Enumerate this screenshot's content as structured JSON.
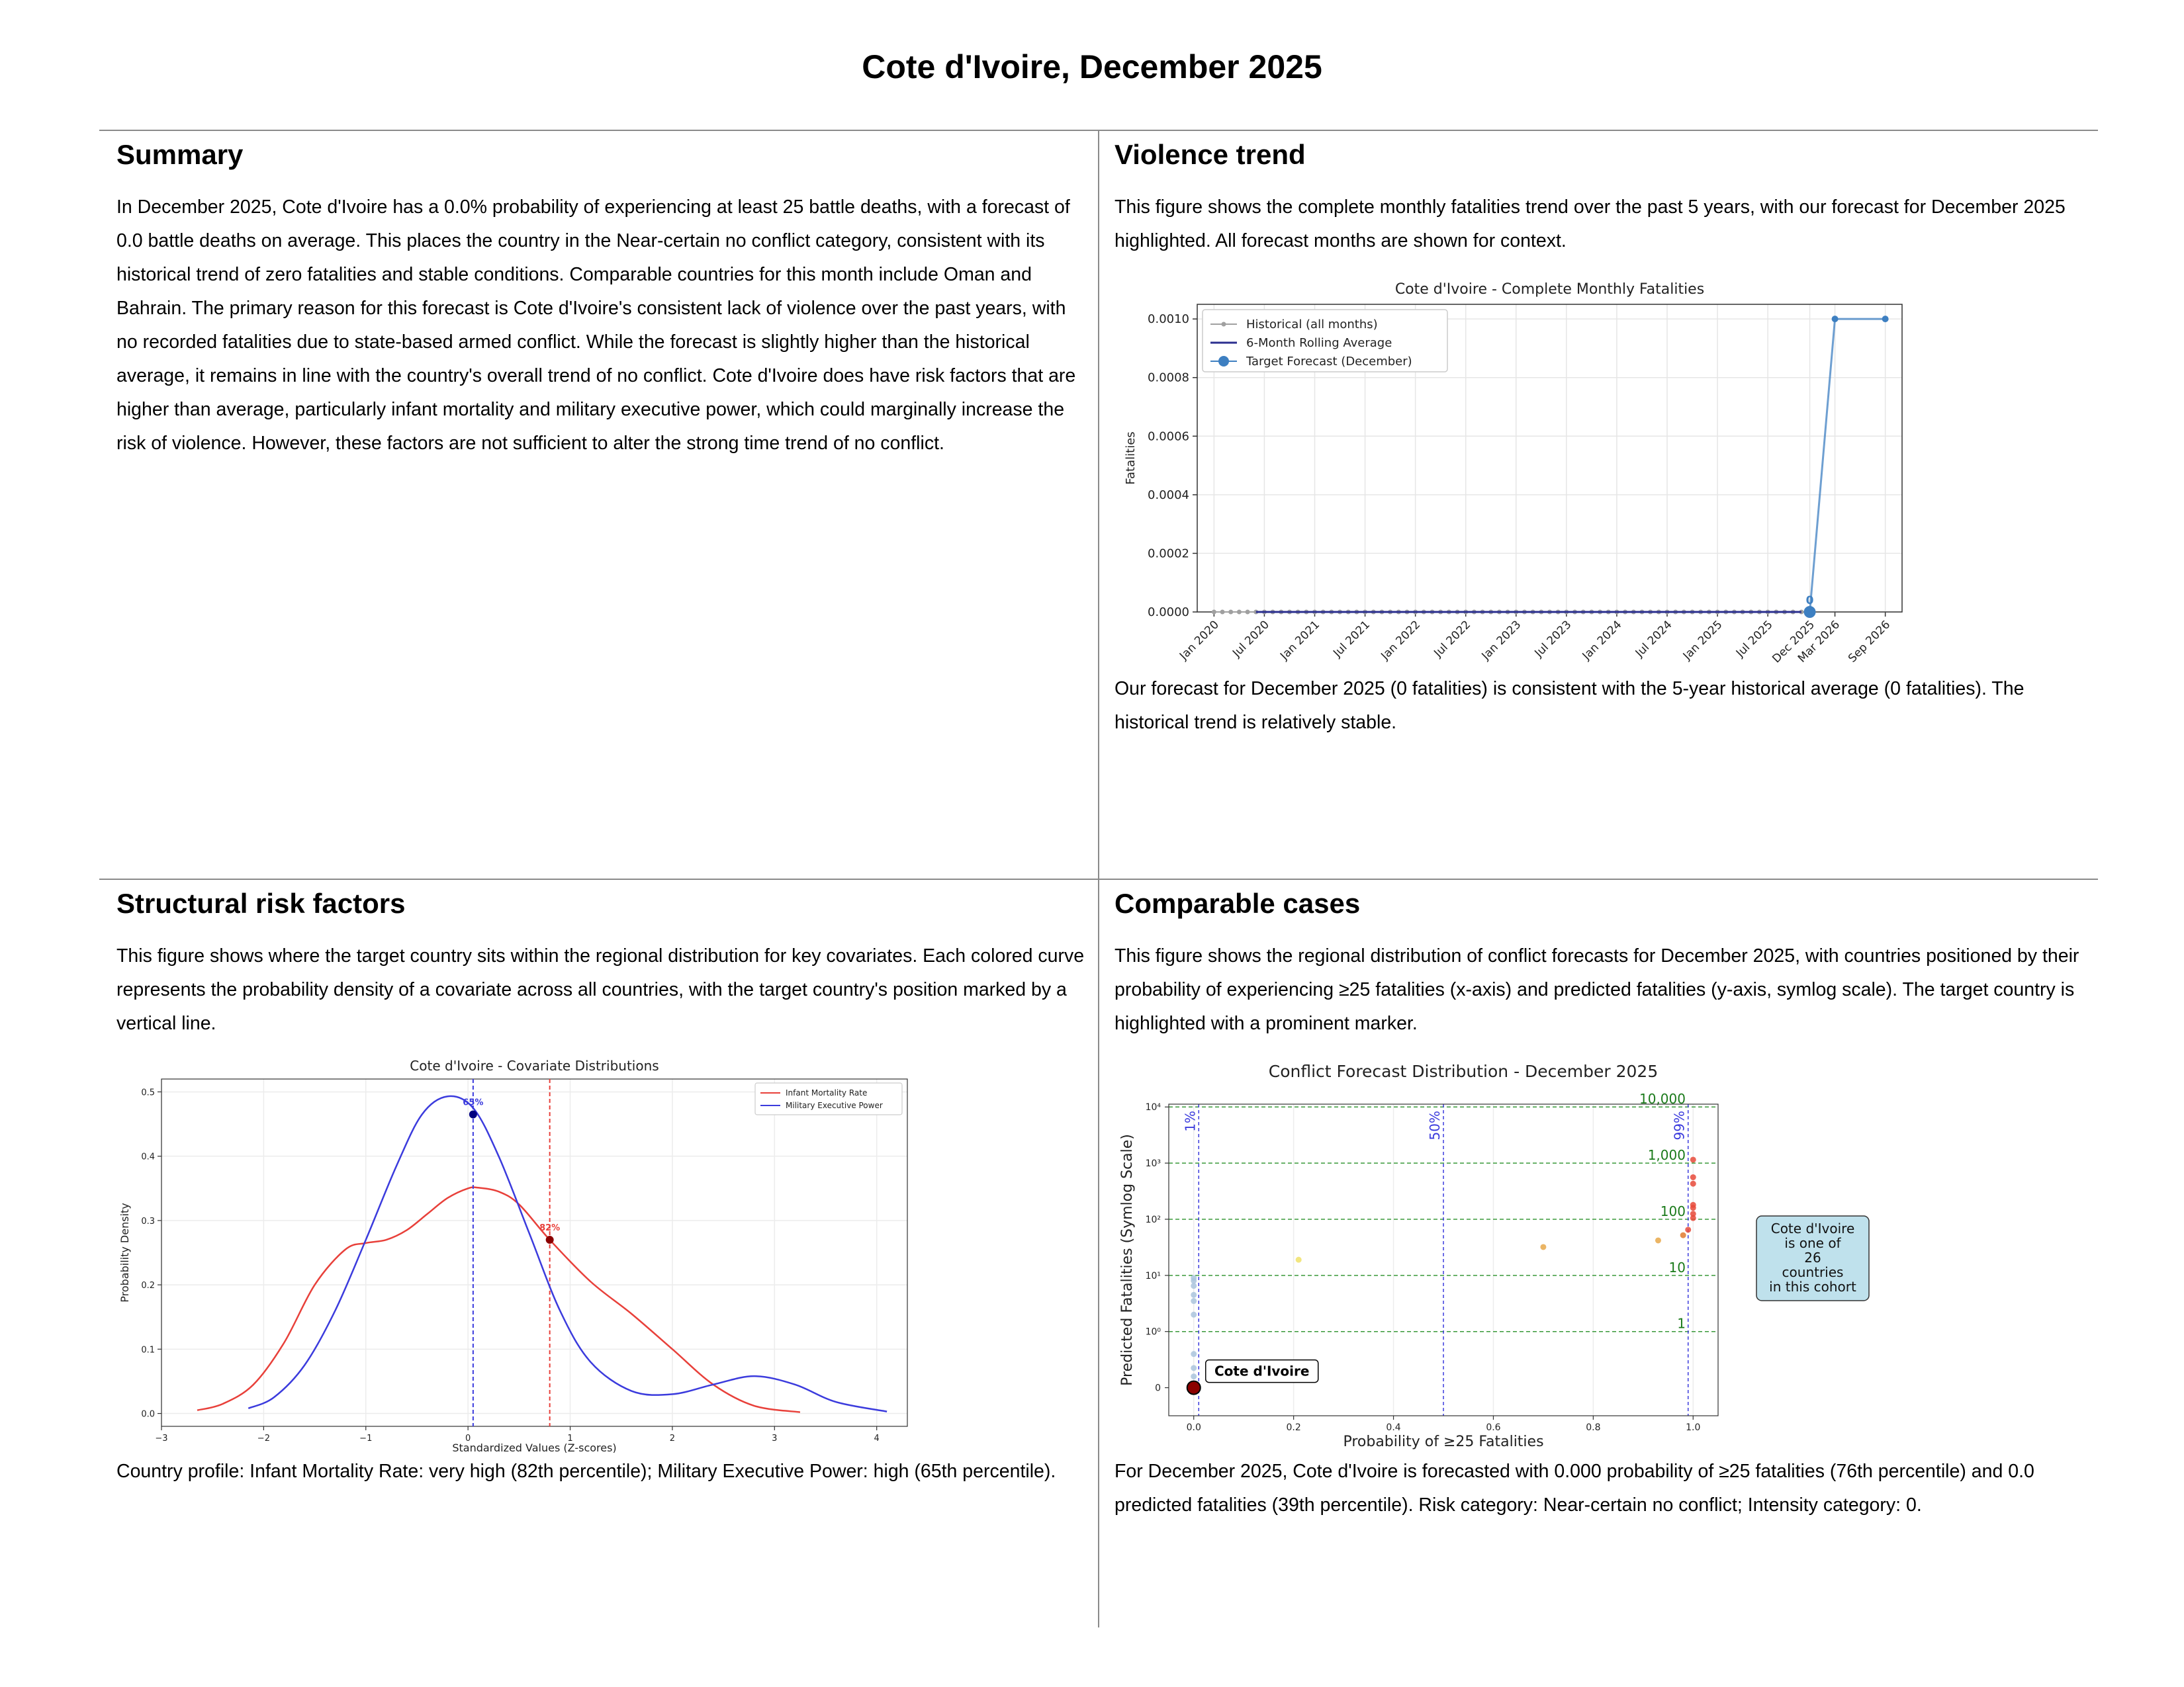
{
  "page": {
    "title": "Cote d'Ivoire, December 2025"
  },
  "summary": {
    "heading": "Summary",
    "body": "In December 2025, Cote d'Ivoire has a 0.0% probability of experiencing at least 25 battle deaths, with a forecast of 0.0 battle deaths on average. This places the country in the Near-certain no conflict category, consistent with its historical trend of zero fatalities and stable conditions. Comparable countries for this month include Oman and Bahrain. The primary reason for this forecast is Cote d'Ivoire's consistent lack of violence over the past years, with no recorded fatalities due to state-based armed conflict. While the forecast is slightly higher than the historical average, it remains in line with the country's overall trend of no conflict. Cote d'Ivoire does have risk factors that are higher than average, particularly infant mortality and military executive power, which could marginally increase the risk of violence. However, these factors are not sufficient to alter the strong time trend of no conflict."
  },
  "violence": {
    "heading": "Violence trend",
    "intro": "This figure shows the complete monthly fatalities trend over the past 5 years, with our forecast for December 2025 highlighted. All forecast months are shown for context.",
    "caption": "Our forecast for December 2025 (0 fatalities) is consistent with the 5-year historical average (0 fatalities). The historical trend is relatively stable."
  },
  "structural": {
    "heading": "Structural risk factors",
    "intro": "This figure shows where the target country sits within the regional distribution for key covariates. Each colored curve represents the probability density of a covariate across all countries, with the target country's position marked by a vertical line.",
    "caption": "Country profile: Infant Mortality Rate: very high (82th percentile); Military Executive Power: high (65th percentile)."
  },
  "comparable": {
    "heading": "Comparable cases",
    "intro": "This figure shows the regional distribution of conflict forecasts for December 2025, with countries positioned by their probability of experiencing ≥25 fatalities (x-axis) and predicted fatalities (y-axis, symlog scale). The target country is highlighted with a prominent marker.",
    "caption": "For December 2025, Cote d'Ivoire is forecasted with 0.000 probability of ≥25 fatalities (76th percentile) and 0.0 predicted fatalities (39th percentile). Risk category: Near-certain no conflict; Intensity category: 0."
  },
  "chart_data": [
    {
      "type": "line",
      "title": "Cote d'Ivoire - Complete Monthly Fatalities",
      "ylabel": "Fatalities",
      "xlabel": "",
      "ylim": [
        0,
        0.00105
      ],
      "y_ticks": [
        "0.0000",
        "0.0002",
        "0.0004",
        "0.0006",
        "0.0008",
        "0.0010"
      ],
      "x_ticks": [
        "Jan 2020",
        "Jul 2020",
        "Jan 2021",
        "Jul 2021",
        "Jan 2022",
        "Jul 2022",
        "Jan 2023",
        "Jul 2023",
        "Jan 2024",
        "Jul 2024",
        "Jan 2025",
        "Jul 2025",
        "Dec 2025",
        "Mar 2026",
        "Sep 2026"
      ],
      "legend": [
        "Historical (all months)",
        "6-Month Rolling Average",
        "Target Forecast (December)"
      ],
      "legend_position": "top-left",
      "grid": true,
      "colors": {
        "historical": "#a0a0a0",
        "rolling": "#2b2f8f",
        "forecast": "#3d7fc1"
      },
      "series": [
        {
          "name": "Historical (all months)",
          "x_range": [
            "2020-01",
            "2025-11"
          ],
          "value": 0
        },
        {
          "name": "6-Month Rolling Average",
          "x_range": [
            "2020-06",
            "2025-11"
          ],
          "value": 0
        },
        {
          "name": "Target Forecast (December)",
          "x": [
            "2025-12",
            "2026-03",
            "2026-09"
          ],
          "values": [
            0,
            0.001,
            0.001
          ]
        }
      ],
      "annotation": {
        "text": "0",
        "x": "2025-12",
        "y": 0
      }
    },
    {
      "type": "area",
      "title": "Cote d'Ivoire - Covariate Distributions",
      "xlabel": "Standardized Values (Z-scores)",
      "ylabel": "Probability Density",
      "xlim": [
        -3,
        4.3
      ],
      "ylim": [
        -0.02,
        0.52
      ],
      "x_ticks": [
        "−3",
        "−2",
        "−1",
        "0",
        "1",
        "2",
        "3",
        "4"
      ],
      "y_ticks": [
        "0.0",
        "0.1",
        "0.2",
        "0.3",
        "0.4",
        "0.5"
      ],
      "legend_position": "top-right",
      "grid": true,
      "series": [
        {
          "name": "Infant Mortality Rate",
          "color": "#e8403a",
          "x": [
            -2.65,
            -2.4,
            -2.1,
            -1.8,
            -1.5,
            -1.2,
            -1.0,
            -0.8,
            -0.6,
            -0.4,
            -0.2,
            0.0,
            0.1,
            0.3,
            0.5,
            0.8,
            1.2,
            1.6,
            2.0,
            2.4,
            2.8,
            3.25
          ],
          "values": [
            0.005,
            0.015,
            0.045,
            0.11,
            0.2,
            0.255,
            0.265,
            0.27,
            0.285,
            0.31,
            0.335,
            0.35,
            0.351,
            0.345,
            0.325,
            0.27,
            0.205,
            0.155,
            0.1,
            0.045,
            0.012,
            0.002
          ],
          "marker": {
            "x": 0.8,
            "y": 0.27,
            "label": "82%"
          }
        },
        {
          "name": "Military Executive Power",
          "color": "#3b3bdd",
          "x": [
            -2.15,
            -1.9,
            -1.6,
            -1.3,
            -1.0,
            -0.7,
            -0.45,
            -0.2,
            0.05,
            0.3,
            0.6,
            0.9,
            1.2,
            1.6,
            2.0,
            2.4,
            2.8,
            3.2,
            3.6,
            4.1
          ],
          "values": [
            0.008,
            0.025,
            0.075,
            0.16,
            0.27,
            0.385,
            0.465,
            0.493,
            0.475,
            0.4,
            0.28,
            0.16,
            0.08,
            0.035,
            0.03,
            0.045,
            0.058,
            0.045,
            0.018,
            0.003
          ],
          "marker": {
            "x": 0.05,
            "y": 0.465,
            "label": "65%"
          }
        }
      ]
    },
    {
      "type": "scatter",
      "title": "Conflict Forecast Distribution - December 2025",
      "xlabel": "Probability of ≥25 Fatalities",
      "ylabel": "Predicted Fatalities (Symlog Scale)",
      "xlim": [
        -0.05,
        1.05
      ],
      "y_scale": "symlog",
      "x_ticks": [
        "0.0",
        "0.2",
        "0.4",
        "0.6",
        "0.8",
        "1.0"
      ],
      "y_ticks": [
        "0",
        "10⁰",
        "10¹",
        "10²",
        "10³",
        "10⁴"
      ],
      "grid": true,
      "percentile_lines": [
        {
          "label": "1%",
          "x": 0.01
        },
        {
          "label": "50%",
          "x": 0.5
        },
        {
          "label": "99%",
          "x": 0.99
        }
      ],
      "threshold_lines": [
        {
          "label": "1",
          "y": 1
        },
        {
          "label": "10",
          "y": 10
        },
        {
          "label": "100",
          "y": 100
        },
        {
          "label": "1,000",
          "y": 1000
        },
        {
          "label": "10,000",
          "y": 10000
        }
      ],
      "points": [
        {
          "x": 0.0,
          "y": 0.0,
          "color": "#8b0000",
          "target": true
        },
        {
          "x": 0.0,
          "y": 0.2,
          "color": "#aac4dd"
        },
        {
          "x": 0.0,
          "y": 0.35,
          "color": "#aac4dd"
        },
        {
          "x": 0.0,
          "y": 0.6,
          "color": "#aac4dd"
        },
        {
          "x": 0.0,
          "y": 2.0,
          "color": "#aac4dd"
        },
        {
          "x": 0.0,
          "y": 3.5,
          "color": "#aac4dd"
        },
        {
          "x": 0.0,
          "y": 4.5,
          "color": "#aac4dd"
        },
        {
          "x": 0.0,
          "y": 6.5,
          "color": "#aac4dd"
        },
        {
          "x": 0.0,
          "y": 8.0,
          "color": "#aac4dd"
        },
        {
          "x": 0.0,
          "y": 9.0,
          "color": "#aac4dd"
        },
        {
          "x": 0.21,
          "y": 19,
          "color": "#f0e26a"
        },
        {
          "x": 0.7,
          "y": 32,
          "color": "#e8a84a"
        },
        {
          "x": 0.93,
          "y": 42,
          "color": "#e8a84a"
        },
        {
          "x": 0.98,
          "y": 52,
          "color": "#e07a30"
        },
        {
          "x": 0.99,
          "y": 65,
          "color": "#e84a3a"
        },
        {
          "x": 1.0,
          "y": 105,
          "color": "#e84a3a"
        },
        {
          "x": 1.0,
          "y": 125,
          "color": "#e84a3a"
        },
        {
          "x": 1.0,
          "y": 160,
          "color": "#e84a3a"
        },
        {
          "x": 1.0,
          "y": 180,
          "color": "#e84a3a"
        },
        {
          "x": 1.0,
          "y": 430,
          "color": "#e84a3a"
        },
        {
          "x": 1.0,
          "y": 560,
          "color": "#e84a3a"
        },
        {
          "x": 1.0,
          "y": 1150,
          "color": "#e84a3a"
        }
      ],
      "target_label": "Cote d'Ivoire",
      "cohort_note": [
        "Cote d'Ivoire",
        "is one of",
        "26",
        "countries",
        "in this cohort"
      ]
    }
  ]
}
